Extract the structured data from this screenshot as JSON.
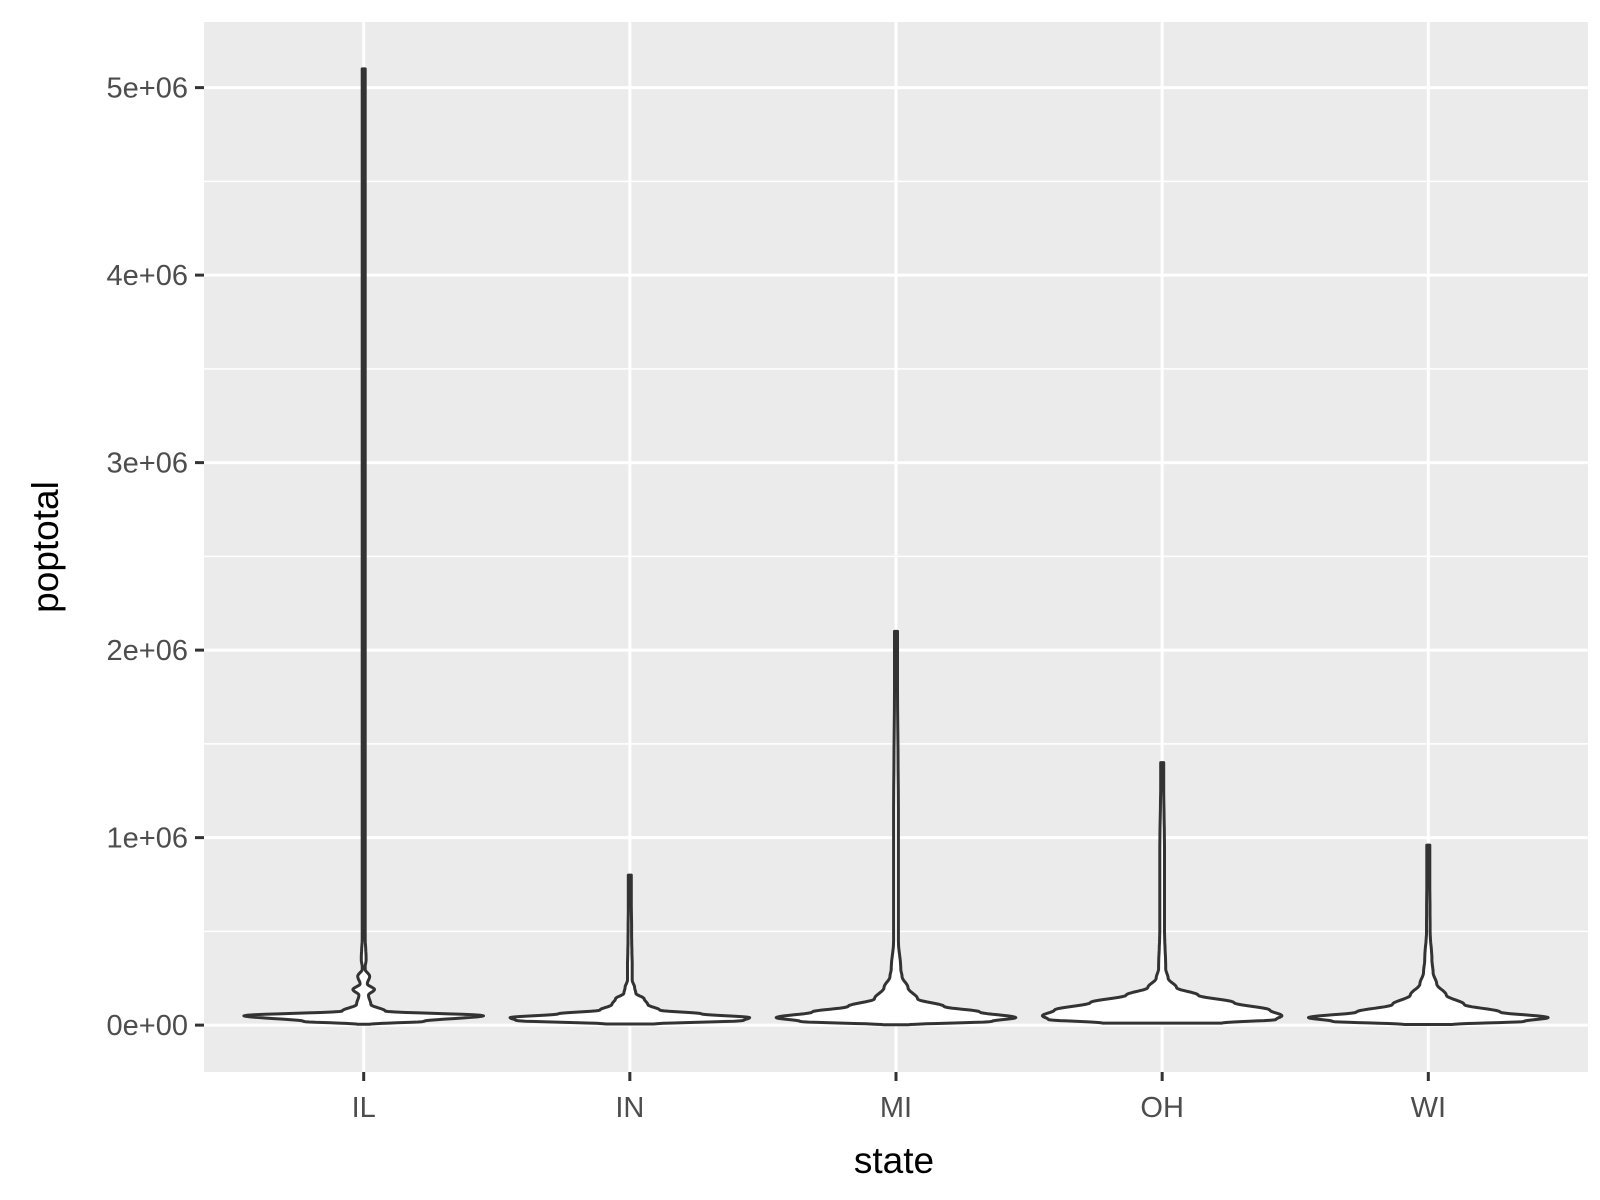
{
  "chart_data": {
    "type": "violin",
    "xlabel": "state",
    "ylabel": "poptotal",
    "categories": [
      "IL",
      "IN",
      "MI",
      "OH",
      "WI"
    ],
    "ylim": [
      -250000,
      5350000
    ],
    "y_ticks": [
      0,
      1000000,
      2000000,
      3000000,
      4000000,
      5000000
    ],
    "y_tick_labels": [
      "0e+00",
      "1e+06",
      "2e+06",
      "3e+06",
      "4e+06",
      "5e+06"
    ],
    "grid": true,
    "legend": "none",
    "violins": [
      {
        "state": "IL",
        "min": 4400,
        "max": 5100000,
        "profile": [
          [
            4400,
            0.05
          ],
          [
            20000,
            0.5
          ],
          [
            50000,
            1
          ],
          [
            75000,
            0.18
          ],
          [
            110000,
            0.06
          ],
          [
            160000,
            0.04
          ],
          [
            190000,
            0.09
          ],
          [
            220000,
            0.03
          ],
          [
            260000,
            0.05
          ],
          [
            300000,
            0.01
          ],
          [
            350000,
            0.02
          ],
          [
            500000,
            0.01
          ],
          [
            770000,
            0.01
          ],
          [
            5100000,
            0.005
          ]
        ]
      },
      {
        "state": "IN",
        "min": 5800,
        "max": 800000,
        "profile": [
          [
            5800,
            0.2
          ],
          [
            25000,
            0.95
          ],
          [
            40000,
            1
          ],
          [
            60000,
            0.6
          ],
          [
            80000,
            0.25
          ],
          [
            110000,
            0.15
          ],
          [
            140000,
            0.12
          ],
          [
            170000,
            0.05
          ],
          [
            200000,
            0.04
          ],
          [
            240000,
            0.02
          ],
          [
            300000,
            0.02
          ],
          [
            470000,
            0.015
          ],
          [
            800000,
            0.01
          ]
        ]
      },
      {
        "state": "MI",
        "min": 1500,
        "max": 2100000,
        "profile": [
          [
            1500,
            0.1
          ],
          [
            20000,
            0.8
          ],
          [
            40000,
            1
          ],
          [
            70000,
            0.7
          ],
          [
            100000,
            0.4
          ],
          [
            140000,
            0.18
          ],
          [
            200000,
            0.1
          ],
          [
            260000,
            0.05
          ],
          [
            300000,
            0.04
          ],
          [
            450000,
            0.02
          ],
          [
            700000,
            0.02
          ],
          [
            1050000,
            0.02
          ],
          [
            2100000,
            0.01
          ]
        ]
      },
      {
        "state": "OH",
        "min": 11000,
        "max": 1400000,
        "profile": [
          [
            11000,
            0.5
          ],
          [
            30000,
            0.95
          ],
          [
            50000,
            1
          ],
          [
            80000,
            0.9
          ],
          [
            120000,
            0.6
          ],
          [
            160000,
            0.3
          ],
          [
            200000,
            0.12
          ],
          [
            250000,
            0.05
          ],
          [
            300000,
            0.03
          ],
          [
            500000,
            0.02
          ],
          [
            900000,
            0.02
          ],
          [
            1400000,
            0.01
          ]
        ]
      },
      {
        "state": "WI",
        "min": 3500,
        "max": 960000,
        "profile": [
          [
            3500,
            0.2
          ],
          [
            20000,
            0.8
          ],
          [
            40000,
            1
          ],
          [
            70000,
            0.6
          ],
          [
            110000,
            0.3
          ],
          [
            160000,
            0.15
          ],
          [
            220000,
            0.07
          ],
          [
            280000,
            0.04
          ],
          [
            350000,
            0.03
          ],
          [
            500000,
            0.015
          ],
          [
            960000,
            0.01
          ]
        ]
      }
    ]
  },
  "colors": {
    "panel_background": "#ebebeb",
    "grid": "#ffffff",
    "violin_fill": "#ffffff",
    "violin_outline": "#333333",
    "tick_text": "#4d4d4d",
    "axis_title": "#000000"
  }
}
